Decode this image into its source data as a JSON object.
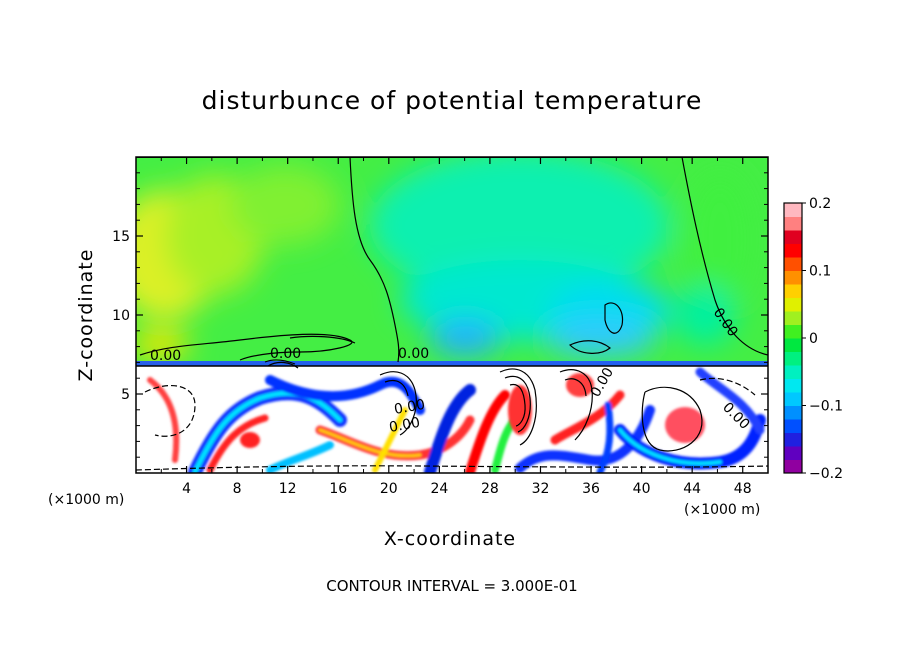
{
  "title": "disturbunce of potential temperature",
  "footer_note": "CONTOUR INTERVAL = 3.000E-01",
  "chart_data": {
    "type": "heatmap",
    "title": "disturbunce of potential temperature",
    "xlabel": "X-coordinate",
    "ylabel": "Z-coordinate",
    "x_unit_label_left": "(×1000 m)",
    "x_unit_label_right": "(×1000 m)",
    "xlim": [
      0,
      50
    ],
    "ylim": [
      0,
      20
    ],
    "x_ticks": [
      4,
      8,
      12,
      16,
      20,
      24,
      28,
      32,
      36,
      40,
      44,
      48
    ],
    "y_ticks": [
      5,
      10,
      15
    ],
    "colorbar": {
      "min": -0.2,
      "max": 0.2,
      "tick_values": [
        0.2,
        0.1,
        0,
        -0.1,
        -0.2
      ],
      "tick_labels": [
        "0.2",
        "0.1",
        "0",
        "−0.1",
        "−0.2"
      ],
      "colors": [
        "#9000a0",
        "#6000c0",
        "#2020e0",
        "#0050ff",
        "#0090ff",
        "#00c8ff",
        "#00e8f0",
        "#00f0c0",
        "#00f080",
        "#00e840",
        "#40f020",
        "#a0f020",
        "#e0f000",
        "#ffd000",
        "#ff9000",
        "#ff5000",
        "#ff0000",
        "#e00020",
        "#ff8080",
        "#ffb8c0"
      ]
    },
    "contour_labels": [
      "0.00",
      "0.00",
      "0.00",
      "0.00",
      "0.00",
      "0.00",
      "0.00",
      "0.00"
    ],
    "contour_interval": 0.3,
    "approx_field": {
      "z_tropopause_km": 6.9,
      "upper_region_value_range": [
        -0.07,
        0.07
      ],
      "lower_region_value_range": [
        -0.2,
        0.2
      ]
    }
  },
  "colors": {
    "frame": "#000000",
    "background": "#ffffff"
  }
}
